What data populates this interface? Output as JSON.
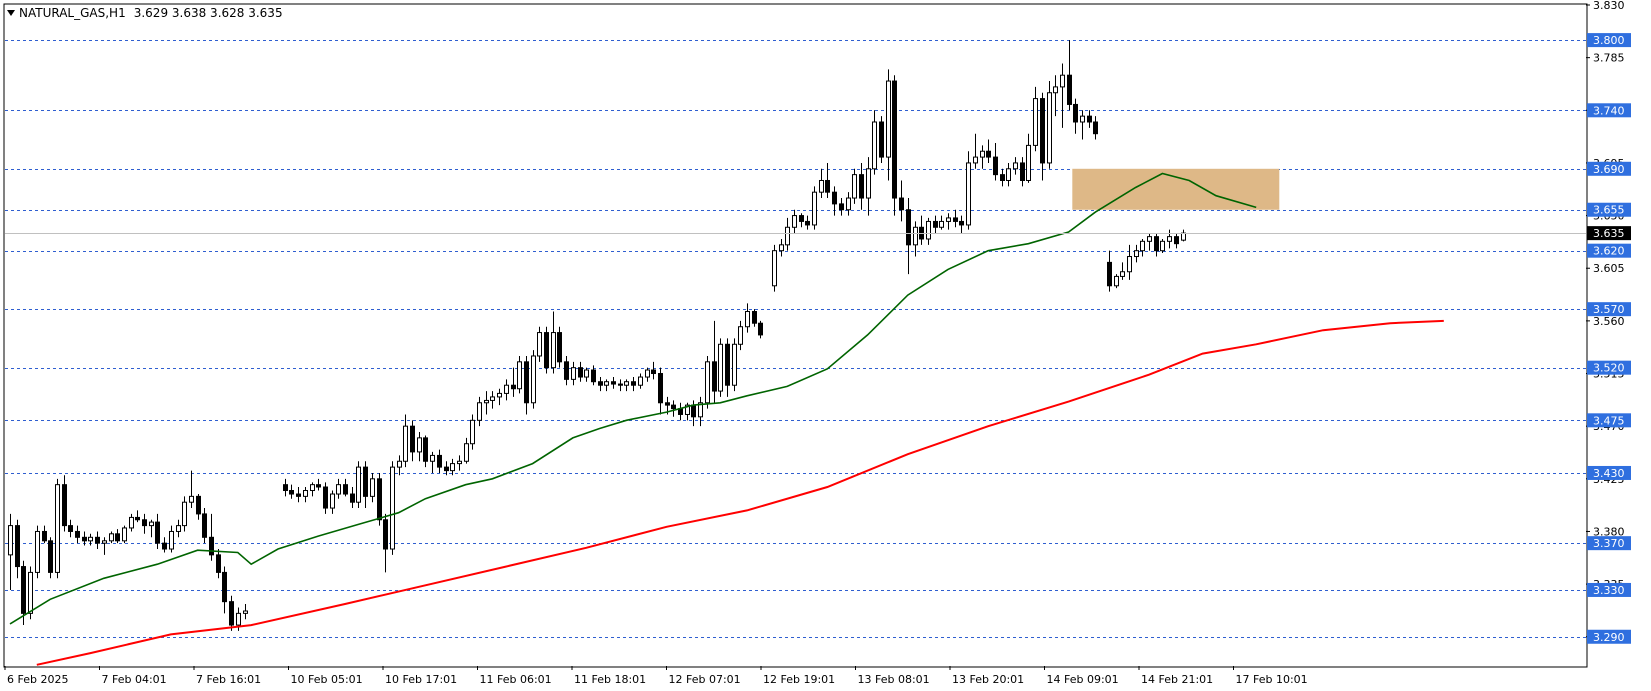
{
  "header": {
    "symbol": "NATURAL_GAS,H1",
    "ohlc": "3.629 3.638 3.628 3.635"
  },
  "colors": {
    "background": "#ffffff",
    "bull_body": "#ffffff",
    "bear_body": "#000000",
    "candle_outline": "#000000",
    "ma_short": "#006400",
    "ma_long": "#ff0000",
    "level_line": "#2f5fd0",
    "level_badge": "#2f6fdf",
    "current_badge": "#000000",
    "zone_fill": "#deb887"
  },
  "chart_data": {
    "type": "candlestick",
    "title": "NATURAL_GAS,H1",
    "ylim": [
      3.265,
      3.83
    ],
    "y_ticks": [
      "3.830",
      "3.785",
      "3.740",
      "3.695",
      "3.650",
      "3.605",
      "3.560",
      "3.515",
      "3.470",
      "3.425",
      "3.380",
      "3.335",
      "3.290"
    ],
    "x_ticks": [
      "6 Feb 2025",
      "7 Feb 04:01",
      "7 Feb 16:01",
      "10 Feb 05:01",
      "10 Feb 17:01",
      "11 Feb 06:01",
      "11 Feb 18:01",
      "12 Feb 07:01",
      "12 Feb 19:01",
      "13 Feb 08:01",
      "13 Feb 20:01",
      "14 Feb 09:01",
      "14 Feb 21:01",
      "17 Feb 10:01"
    ],
    "levels": [
      "3.800",
      "3.740",
      "3.690",
      "3.655",
      "3.620",
      "3.570",
      "3.520",
      "3.475",
      "3.430",
      "3.370",
      "3.330",
      "3.290"
    ],
    "current_price": "3.635",
    "zone": {
      "price_low": 3.655,
      "price_high": 3.69,
      "bar_start": 159,
      "bar_end": 189
    },
    "candles": [
      [
        3.36,
        3.395,
        3.33,
        3.385
      ],
      [
        3.385,
        3.39,
        3.34,
        3.35
      ],
      [
        3.35,
        3.355,
        3.3,
        3.31
      ],
      [
        3.31,
        3.35,
        3.305,
        3.345
      ],
      [
        3.345,
        3.385,
        3.34,
        3.38
      ],
      [
        3.38,
        3.385,
        3.37,
        3.372
      ],
      [
        3.372,
        3.375,
        3.34,
        3.345
      ],
      [
        3.345,
        3.425,
        3.34,
        3.42
      ],
      [
        3.42,
        3.428,
        3.38,
        3.385
      ],
      [
        3.385,
        3.39,
        3.375,
        3.38
      ],
      [
        3.38,
        3.385,
        3.37,
        3.375
      ],
      [
        3.375,
        3.38,
        3.368,
        3.372
      ],
      [
        3.372,
        3.378,
        3.368,
        3.375
      ],
      [
        3.375,
        3.38,
        3.365,
        3.37
      ],
      [
        3.37,
        3.375,
        3.36,
        3.372
      ],
      [
        3.372,
        3.38,
        3.37,
        3.378
      ],
      [
        3.378,
        3.382,
        3.37,
        3.372
      ],
      [
        3.372,
        3.385,
        3.37,
        3.383
      ],
      [
        3.383,
        3.395,
        3.38,
        3.392
      ],
      [
        3.392,
        3.398,
        3.388,
        3.39
      ],
      [
        3.39,
        3.395,
        3.378,
        3.385
      ],
      [
        3.385,
        3.39,
        3.375,
        3.388
      ],
      [
        3.388,
        3.395,
        3.365,
        3.37
      ],
      [
        3.37,
        3.375,
        3.362,
        3.365
      ],
      [
        3.365,
        3.385,
        3.362,
        3.38
      ],
      [
        3.38,
        3.39,
        3.375,
        3.385
      ],
      [
        3.385,
        3.41,
        3.38,
        3.405
      ],
      [
        3.405,
        3.432,
        3.4,
        3.41
      ],
      [
        3.41,
        3.412,
        3.39,
        3.395
      ],
      [
        3.395,
        3.4,
        3.37,
        3.375
      ],
      [
        3.375,
        3.395,
        3.355,
        3.36
      ],
      [
        3.36,
        3.365,
        3.34,
        3.345
      ],
      [
        3.345,
        3.35,
        3.31,
        3.32
      ],
      [
        3.32,
        3.325,
        3.295,
        3.3
      ],
      [
        3.3,
        3.315,
        3.295,
        3.31
      ],
      [
        3.31,
        3.318,
        3.305,
        3.312
      ],
      null,
      null,
      null,
      null,
      null,
      [
        3.42,
        3.425,
        3.41,
        3.415
      ],
      [
        3.415,
        3.42,
        3.408,
        3.412
      ],
      [
        3.412,
        3.418,
        3.405,
        3.41
      ],
      [
        3.41,
        3.418,
        3.405,
        3.415
      ],
      [
        3.415,
        3.422,
        3.41,
        3.42
      ],
      [
        3.42,
        3.425,
        3.415,
        3.418
      ],
      [
        3.418,
        3.422,
        3.395,
        3.4
      ],
      [
        3.4,
        3.415,
        3.395,
        3.412
      ],
      [
        3.412,
        3.425,
        3.408,
        3.42
      ],
      [
        3.42,
        3.425,
        3.41,
        3.412
      ],
      [
        3.412,
        3.418,
        3.4,
        3.405
      ],
      [
        3.405,
        3.44,
        3.4,
        3.435
      ],
      [
        3.435,
        3.44,
        3.4,
        3.41
      ],
      [
        3.41,
        3.43,
        3.405,
        3.425
      ],
      [
        3.425,
        3.43,
        3.385,
        3.39
      ],
      [
        3.39,
        3.395,
        3.345,
        3.365
      ],
      [
        3.365,
        3.44,
        3.36,
        3.435
      ],
      [
        3.435,
        3.445,
        3.428,
        3.44
      ],
      [
        3.44,
        3.48,
        3.435,
        3.47
      ],
      [
        3.47,
        3.475,
        3.44,
        3.448
      ],
      [
        3.448,
        3.465,
        3.44,
        3.46
      ],
      [
        3.46,
        3.462,
        3.435,
        3.44
      ],
      [
        3.44,
        3.448,
        3.43,
        3.445
      ],
      [
        3.445,
        3.45,
        3.43,
        3.435
      ],
      [
        3.435,
        3.44,
        3.428,
        3.432
      ],
      [
        3.432,
        3.442,
        3.428,
        3.438
      ],
      [
        3.438,
        3.445,
        3.432,
        3.44
      ],
      [
        3.44,
        3.46,
        3.438,
        3.455
      ],
      [
        3.455,
        3.48,
        3.45,
        3.475
      ],
      [
        3.475,
        3.495,
        3.47,
        3.49
      ],
      [
        3.49,
        3.5,
        3.48,
        3.492
      ],
      [
        3.492,
        3.5,
        3.485,
        3.495
      ],
      [
        3.495,
        3.502,
        3.488,
        3.498
      ],
      [
        3.498,
        3.51,
        3.492,
        3.505
      ],
      [
        3.505,
        3.52,
        3.495,
        3.502
      ],
      [
        3.502,
        3.53,
        3.498,
        3.525
      ],
      [
        3.525,
        3.53,
        3.48,
        3.49
      ],
      [
        3.49,
        3.535,
        3.485,
        3.53
      ],
      [
        3.53,
        3.555,
        3.525,
        3.55
      ],
      [
        3.55,
        3.555,
        3.515,
        3.52
      ],
      [
        3.52,
        3.568,
        3.515,
        3.55
      ],
      [
        3.55,
        3.555,
        3.52,
        3.525
      ],
      [
        3.525,
        3.53,
        3.505,
        3.51
      ],
      [
        3.51,
        3.525,
        3.505,
        3.52
      ],
      [
        3.52,
        3.525,
        3.508,
        3.512
      ],
      [
        3.512,
        3.52,
        3.508,
        3.518
      ],
      [
        3.518,
        3.522,
        3.505,
        3.508
      ],
      [
        3.508,
        3.512,
        3.5,
        3.505
      ],
      [
        3.505,
        3.51,
        3.5,
        3.508
      ],
      [
        3.508,
        3.512,
        3.502,
        3.506
      ],
      [
        3.506,
        3.51,
        3.5,
        3.505
      ],
      [
        3.505,
        3.51,
        3.5,
        3.508
      ],
      [
        3.508,
        3.512,
        3.5,
        3.505
      ],
      [
        3.505,
        3.515,
        3.502,
        3.512
      ],
      [
        3.512,
        3.52,
        3.508,
        3.518
      ],
      [
        3.518,
        3.525,
        3.51,
        3.515
      ],
      [
        3.515,
        3.52,
        3.48,
        3.49
      ],
      [
        3.49,
        3.495,
        3.48,
        3.488
      ],
      [
        3.488,
        3.492,
        3.478,
        3.485
      ],
      [
        3.485,
        3.49,
        3.475,
        3.48
      ],
      [
        3.48,
        3.49,
        3.475,
        3.488
      ],
      [
        3.488,
        3.492,
        3.47,
        3.478
      ],
      [
        3.478,
        3.495,
        3.47,
        3.49
      ],
      [
        3.49,
        3.53,
        3.485,
        3.525
      ],
      [
        3.525,
        3.56,
        3.49,
        3.5
      ],
      [
        3.5,
        3.545,
        3.495,
        3.54
      ],
      [
        3.54,
        3.545,
        3.495,
        3.505
      ],
      [
        3.505,
        3.545,
        3.5,
        3.54
      ],
      [
        3.54,
        3.56,
        3.535,
        3.555
      ],
      [
        3.555,
        3.575,
        3.55,
        3.568
      ],
      [
        3.568,
        3.57,
        3.555,
        3.558
      ],
      [
        3.558,
        3.56,
        3.545,
        3.548
      ],
      null,
      [
        3.59,
        3.625,
        3.585,
        3.62
      ],
      [
        3.62,
        3.63,
        3.615,
        3.625
      ],
      [
        3.625,
        3.648,
        3.62,
        3.64
      ],
      [
        3.64,
        3.655,
        3.635,
        3.65
      ],
      [
        3.65,
        3.652,
        3.64,
        3.645
      ],
      [
        3.645,
        3.65,
        3.638,
        3.642
      ],
      [
        3.642,
        3.675,
        3.638,
        3.67
      ],
      [
        3.67,
        3.69,
        3.665,
        3.68
      ],
      [
        3.68,
        3.695,
        3.665,
        3.67
      ],
      [
        3.67,
        3.675,
        3.65,
        3.66
      ],
      [
        3.66,
        3.665,
        3.65,
        3.655
      ],
      [
        3.655,
        3.67,
        3.65,
        3.665
      ],
      [
        3.665,
        3.69,
        3.66,
        3.685
      ],
      [
        3.685,
        3.695,
        3.655,
        3.665
      ],
      [
        3.665,
        3.7,
        3.65,
        3.69
      ],
      [
        3.69,
        3.74,
        3.685,
        3.73
      ],
      [
        3.73,
        3.735,
        3.695,
        3.7
      ],
      [
        3.7,
        3.775,
        3.68,
        3.765
      ],
      [
        3.765,
        3.77,
        3.65,
        3.665
      ],
      [
        3.665,
        3.68,
        3.645,
        3.655
      ],
      [
        3.655,
        3.665,
        3.6,
        3.625
      ],
      [
        3.625,
        3.645,
        3.615,
        3.64
      ],
      [
        3.64,
        3.65,
        3.625,
        3.63
      ],
      [
        3.63,
        3.648,
        3.625,
        3.645
      ],
      [
        3.645,
        3.65,
        3.635,
        3.64
      ],
      [
        3.64,
        3.65,
        3.638,
        3.645
      ],
      [
        3.645,
        3.652,
        3.638,
        3.648
      ],
      [
        3.648,
        3.655,
        3.64,
        3.645
      ],
      [
        3.645,
        3.65,
        3.635,
        3.642
      ],
      [
        3.642,
        3.705,
        3.638,
        3.695
      ],
      [
        3.695,
        3.72,
        3.69,
        3.7
      ],
      [
        3.7,
        3.71,
        3.69,
        3.705
      ],
      [
        3.705,
        3.715,
        3.695,
        3.7
      ],
      [
        3.7,
        3.712,
        3.68,
        3.685
      ],
      [
        3.685,
        3.69,
        3.675,
        3.68
      ],
      [
        3.68,
        3.695,
        3.675,
        3.69
      ],
      [
        3.69,
        3.7,
        3.685,
        3.695
      ],
      [
        3.695,
        3.7,
        3.675,
        3.68
      ],
      [
        3.68,
        3.72,
        3.678,
        3.71
      ],
      [
        3.71,
        3.76,
        3.705,
        3.75
      ],
      [
        3.75,
        3.755,
        3.68,
        3.695
      ],
      [
        3.695,
        3.765,
        3.69,
        3.755
      ],
      [
        3.755,
        3.77,
        3.735,
        3.76
      ],
      [
        3.76,
        3.78,
        3.725,
        3.77
      ],
      [
        3.77,
        3.8,
        3.74,
        3.745
      ],
      [
        3.745,
        3.75,
        3.72,
        3.73
      ],
      [
        3.73,
        3.74,
        3.715,
        3.735
      ],
      [
        3.735,
        3.74,
        3.725,
        3.73
      ],
      [
        3.73,
        3.735,
        3.715,
        3.72
      ],
      null,
      [
        3.61,
        3.62,
        3.585,
        3.59
      ],
      [
        3.59,
        3.6,
        3.588,
        3.598
      ],
      [
        3.598,
        3.61,
        3.595,
        3.602
      ],
      [
        3.602,
        3.625,
        3.595,
        3.615
      ],
      [
        3.615,
        3.625,
        3.61,
        3.62
      ],
      [
        3.62,
        3.63,
        3.615,
        3.628
      ],
      [
        3.628,
        3.635,
        3.62,
        3.632
      ],
      [
        3.632,
        3.635,
        3.615,
        3.62
      ],
      [
        3.62,
        3.63,
        3.618,
        3.628
      ],
      [
        3.628,
        3.638,
        3.622,
        3.632
      ],
      [
        3.632,
        3.635,
        3.622,
        3.626
      ],
      [
        3.629,
        3.638,
        3.628,
        3.635
      ]
    ],
    "ma_short": {
      "points": [
        [
          0,
          3.301
        ],
        [
          6,
          3.322
        ],
        [
          14,
          3.34
        ],
        [
          22,
          3.352
        ],
        [
          28,
          3.364
        ],
        [
          34,
          3.362
        ],
        [
          36,
          3.352
        ],
        [
          40,
          3.365
        ],
        [
          46,
          3.376
        ],
        [
          52,
          3.386
        ],
        [
          58,
          3.396
        ],
        [
          62,
          3.408
        ],
        [
          68,
          3.42
        ],
        [
          72,
          3.425
        ],
        [
          78,
          3.438
        ],
        [
          84,
          3.46
        ],
        [
          88,
          3.468
        ],
        [
          92,
          3.475
        ],
        [
          98,
          3.482
        ],
        [
          102,
          3.488
        ],
        [
          106,
          3.49
        ],
        [
          110,
          3.496
        ],
        [
          116,
          3.504
        ],
        [
          122,
          3.519
        ],
        [
          128,
          3.548
        ],
        [
          134,
          3.582
        ],
        [
          140,
          3.604
        ],
        [
          146,
          3.62
        ],
        [
          152,
          3.626
        ],
        [
          158,
          3.636
        ],
        [
          162,
          3.653
        ],
        [
          168,
          3.674
        ],
        [
          172,
          3.686
        ],
        [
          176,
          3.68
        ],
        [
          180,
          3.667
        ],
        [
          186,
          3.657
        ]
      ]
    },
    "ma_long": {
      "points": [
        [
          4,
          3.266
        ],
        [
          12,
          3.276
        ],
        [
          24,
          3.292
        ],
        [
          36,
          3.3
        ],
        [
          50,
          3.318
        ],
        [
          62,
          3.334
        ],
        [
          74,
          3.35
        ],
        [
          86,
          3.366
        ],
        [
          98,
          3.384
        ],
        [
          110,
          3.398
        ],
        [
          122,
          3.418
        ],
        [
          134,
          3.446
        ],
        [
          146,
          3.47
        ],
        [
          158,
          3.491
        ],
        [
          170,
          3.514
        ],
        [
          178,
          3.532
        ],
        [
          186,
          3.54
        ],
        [
          196,
          3.552
        ],
        [
          206,
          3.558
        ],
        [
          214,
          3.56
        ]
      ]
    }
  }
}
